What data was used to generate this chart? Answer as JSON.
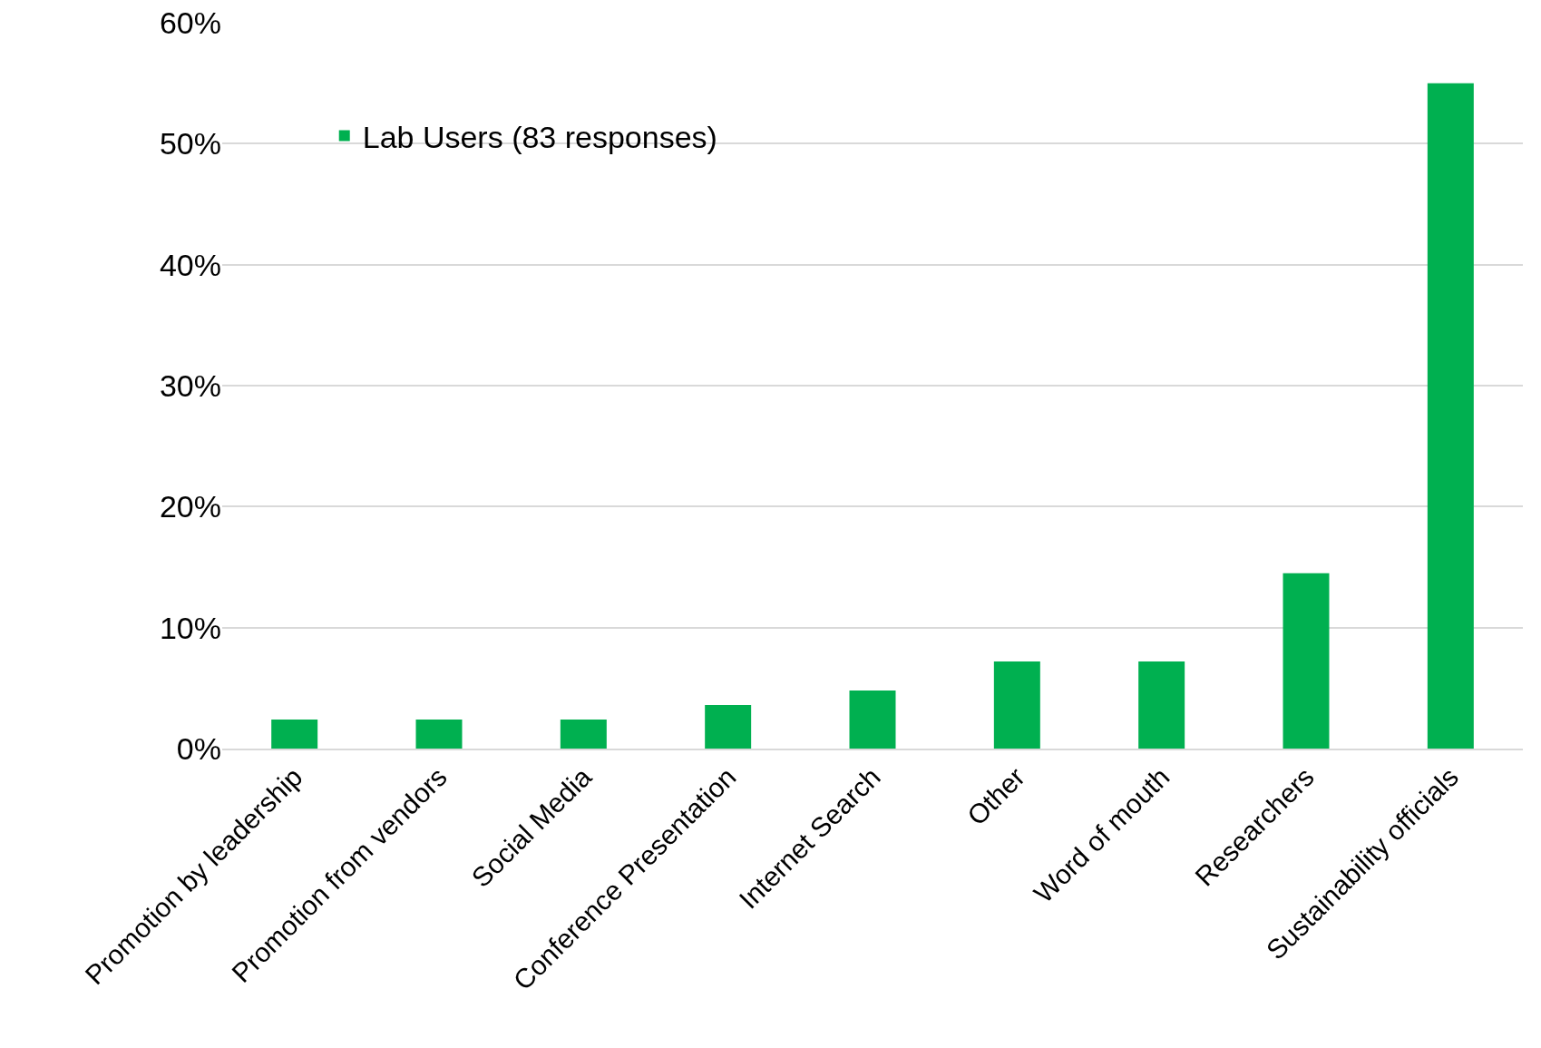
{
  "chart_data": {
    "type": "bar",
    "categories": [
      "Promotion by leadership",
      "Promotion from vendors",
      "Social Media",
      "Conference Presentation",
      "Internet Search",
      "Other",
      "Word of mouth",
      "Researchers",
      "Sustainability officials"
    ],
    "series": [
      {
        "name": "Lab Users (83 responses)",
        "color": "#00b050",
        "values": [
          2.4,
          2.4,
          2.4,
          3.6,
          4.8,
          7.2,
          7.2,
          14.5,
          55
        ]
      }
    ],
    "ylim": [
      0,
      60
    ],
    "yticks": [
      {
        "value": 0,
        "label": "0%"
      },
      {
        "value": 10,
        "label": "10%"
      },
      {
        "value": 20,
        "label": "20%"
      },
      {
        "value": 30,
        "label": "30%"
      },
      {
        "value": 40,
        "label": "40%"
      },
      {
        "value": 50,
        "label": "50%"
      },
      {
        "value": 60,
        "label": "60%"
      }
    ],
    "grid": "y",
    "legend": "top left"
  }
}
